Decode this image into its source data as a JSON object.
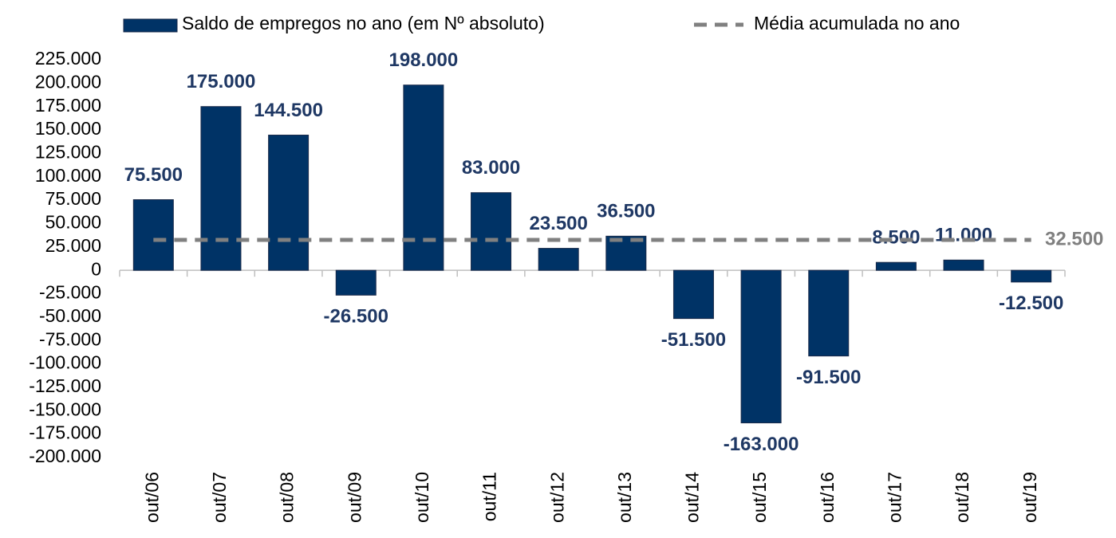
{
  "chart_data": {
    "type": "bar",
    "categories": [
      "out/06",
      "out/07",
      "out/08",
      "out/09",
      "out/10",
      "out/11",
      "out/12",
      "out/13",
      "out/14",
      "out/15",
      "out/16",
      "out/17",
      "out/18",
      "out/19"
    ],
    "series": [
      {
        "name": "Saldo de empregos no ano (em Nº absoluto)",
        "color": "#003366",
        "values": [
          75500,
          175000,
          144500,
          -26500,
          198000,
          83000,
          23500,
          36500,
          -51500,
          -163000,
          -91500,
          8500,
          11000,
          -12500
        ],
        "value_labels": [
          "75.500",
          "175.000",
          "144.500",
          "-26.500",
          "198.000",
          "83.000",
          "23.500",
          "36.500",
          "-51.500",
          "-163.000",
          "-91.500",
          "8.500",
          "11.000",
          "-12.500"
        ]
      }
    ],
    "reference_line": {
      "name": "Média acumulada no ano",
      "color": "#808080",
      "value": 32500,
      "label": "32.500"
    },
    "ylim": [
      -200000,
      225000
    ],
    "yticks": [
      {
        "value": -200000,
        "label": "-200.000"
      },
      {
        "value": -175000,
        "label": "-175.000"
      },
      {
        "value": -150000,
        "label": "-150.000"
      },
      {
        "value": -125000,
        "label": "-125.000"
      },
      {
        "value": -100000,
        "label": "-100.000"
      },
      {
        "value": -75000,
        "label": "-75.000"
      },
      {
        "value": -50000,
        "label": "-50.000"
      },
      {
        "value": -25000,
        "label": "-25.000"
      },
      0,
      {
        "value": 25000,
        "label": "25.000"
      },
      {
        "value": 50000,
        "label": "50.000"
      },
      {
        "value": 75000,
        "label": "75.000"
      },
      {
        "value": 100000,
        "label": "100.000"
      },
      {
        "value": 125000,
        "label": "125.000"
      },
      {
        "value": 150000,
        "label": "150.000"
      },
      {
        "value": 175000,
        "label": "175.000"
      },
      {
        "value": 200000,
        "label": "200.000"
      },
      {
        "value": 225000,
        "label": "225.000"
      }
    ],
    "grid": false
  }
}
